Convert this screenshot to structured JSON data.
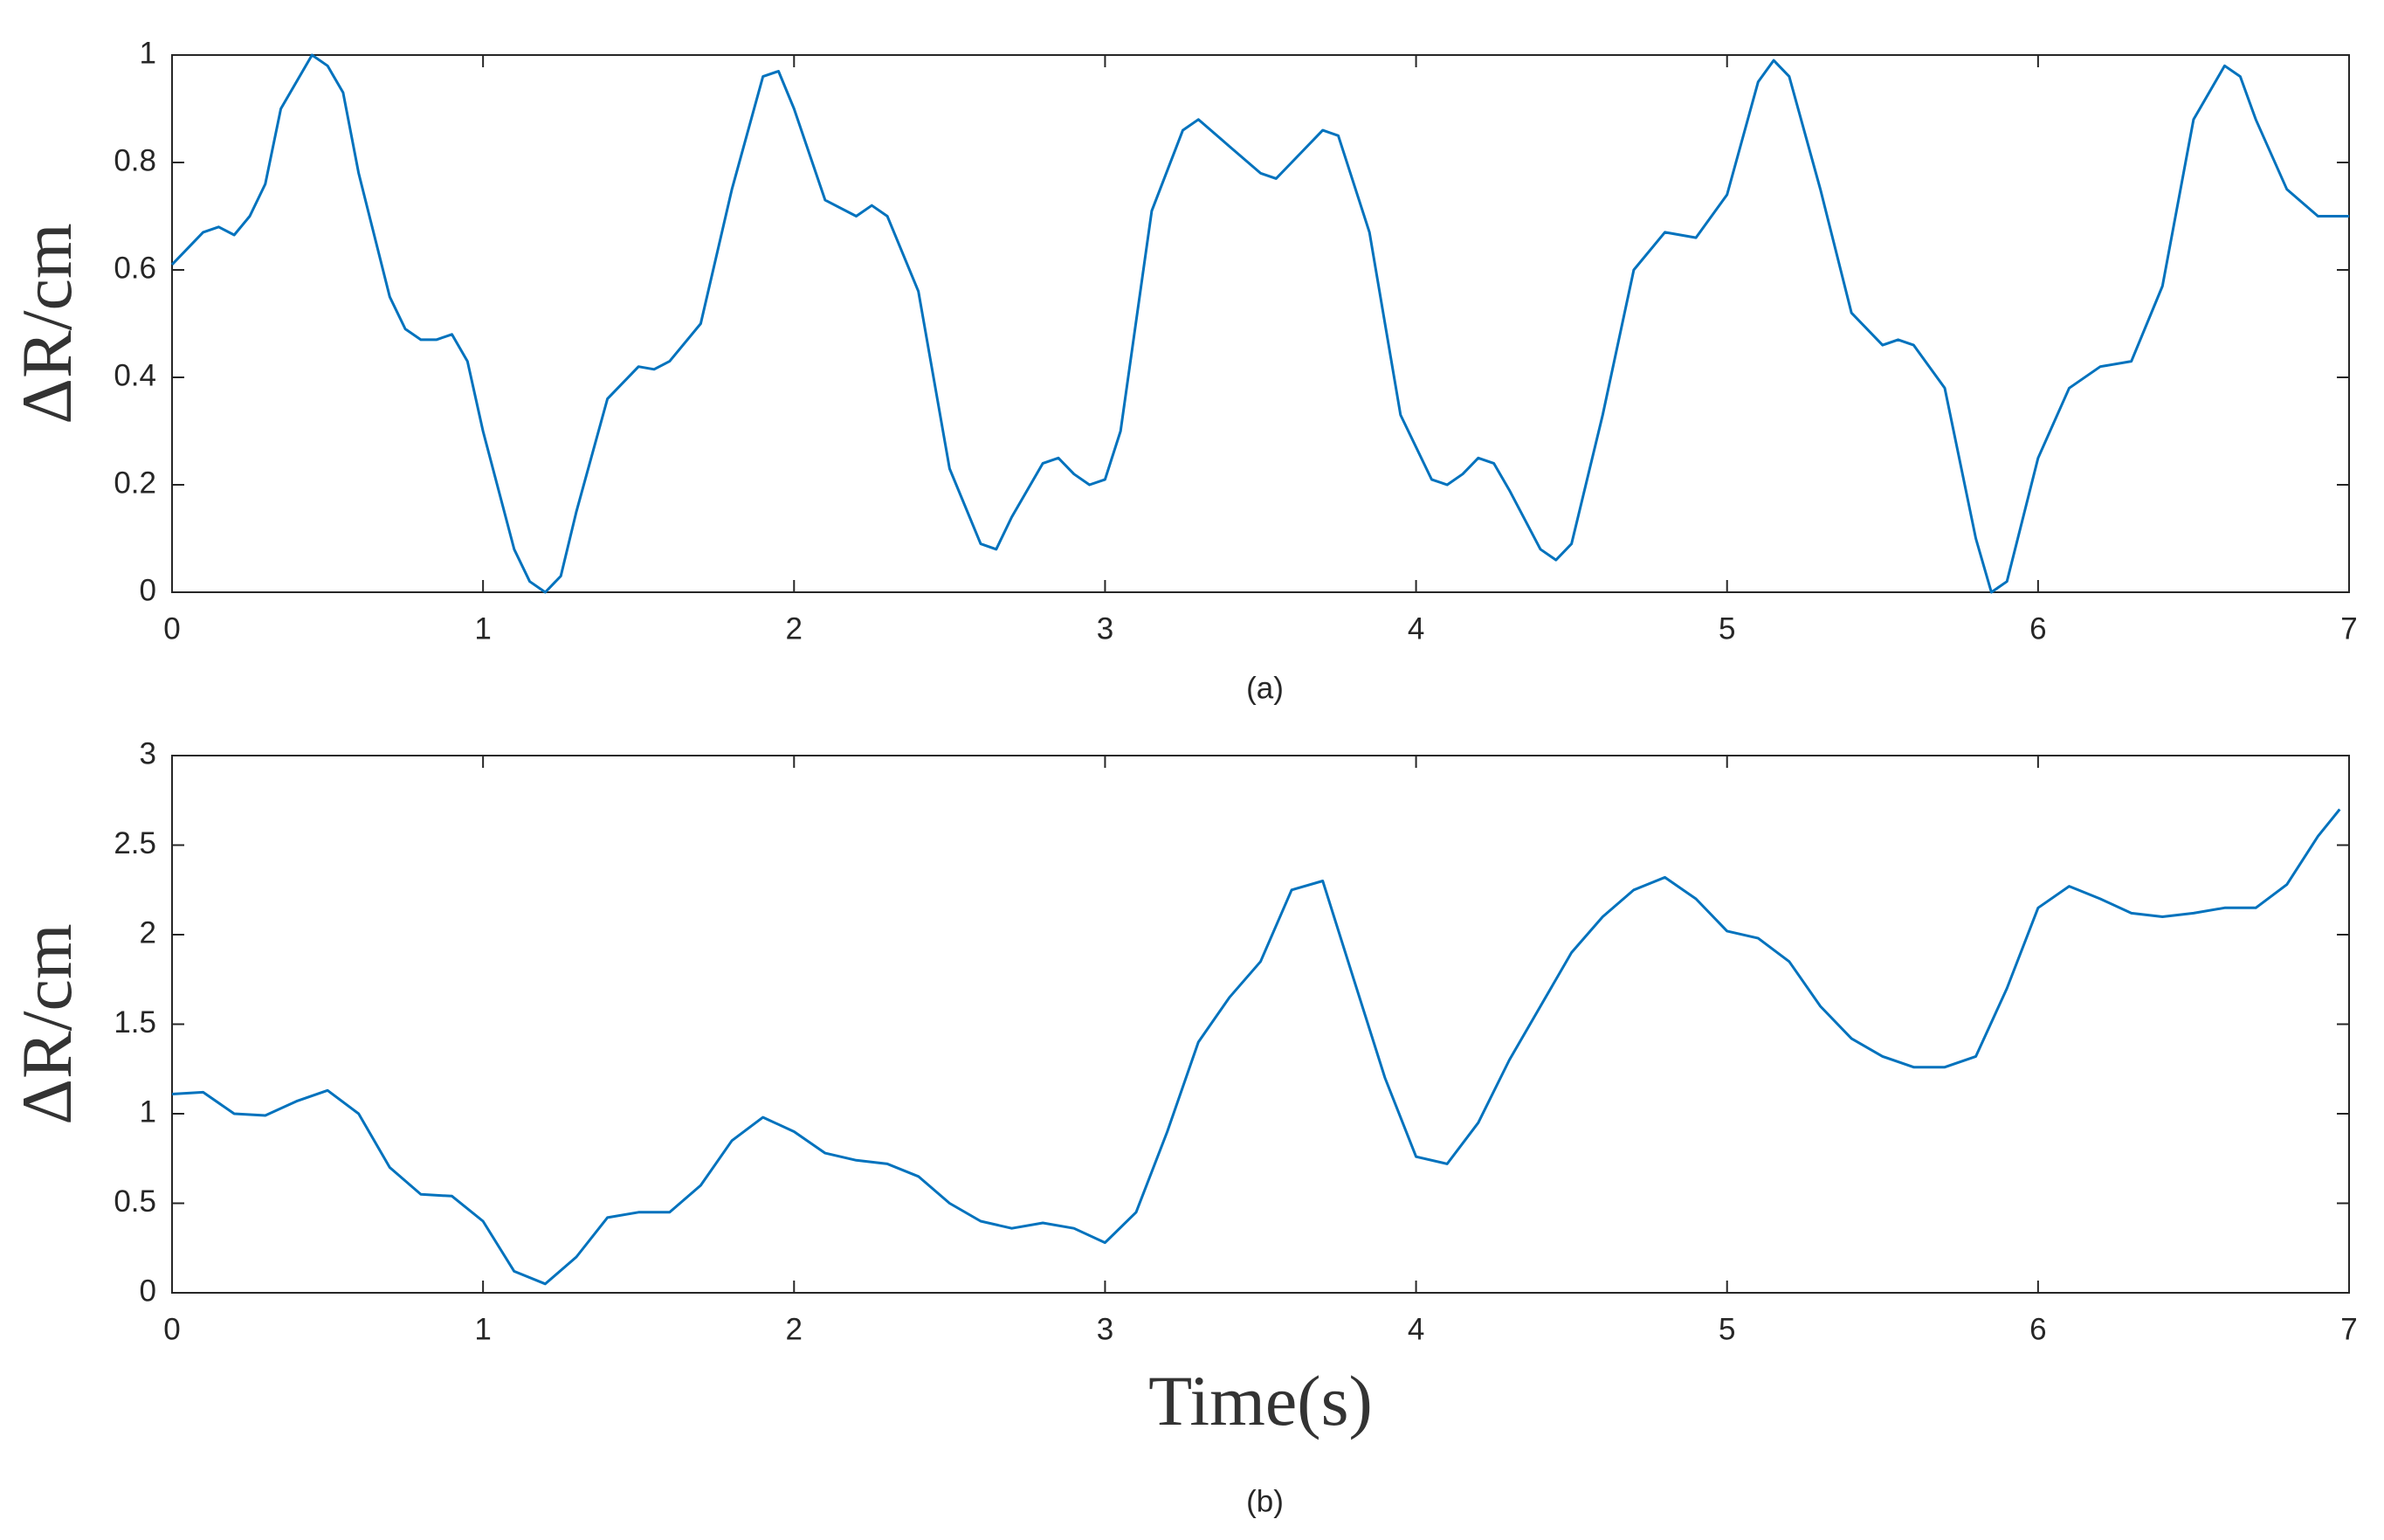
{
  "chart_data": [
    {
      "type": "line",
      "ylabel": "ΔR/cm",
      "caption": "(a)",
      "color": "#0072bd",
      "xlim": [
        0,
        7
      ],
      "xticks": [
        0,
        1,
        2,
        3,
        4,
        5,
        6,
        7
      ],
      "ylim": [
        0,
        1
      ],
      "yticks": [
        0,
        0.2,
        0.4,
        0.6,
        0.8,
        1
      ],
      "x": [
        0,
        0.1,
        0.15,
        0.2,
        0.25,
        0.3,
        0.35,
        0.45,
        0.5,
        0.55,
        0.6,
        0.7,
        0.75,
        0.8,
        0.85,
        0.9,
        0.95,
        1.0,
        1.1,
        1.15,
        1.2,
        1.25,
        1.3,
        1.4,
        1.5,
        1.55,
        1.6,
        1.7,
        1.8,
        1.9,
        1.95,
        2.0,
        2.1,
        2.2,
        2.25,
        2.3,
        2.4,
        2.5,
        2.6,
        2.65,
        2.7,
        2.8,
        2.85,
        2.9,
        2.95,
        3.0,
        3.05,
        3.15,
        3.25,
        3.3,
        3.4,
        3.5,
        3.55,
        3.6,
        3.7,
        3.75,
        3.85,
        3.95,
        4.05,
        4.1,
        4.15,
        4.2,
        4.25,
        4.3,
        4.4,
        4.45,
        4.5,
        4.6,
        4.7,
        4.8,
        4.9,
        5.0,
        5.1,
        5.15,
        5.2,
        5.3,
        5.4,
        5.5,
        5.55,
        5.6,
        5.7,
        5.8,
        5.85,
        5.9,
        6.0,
        6.1,
        6.2,
        6.3,
        6.4,
        6.5,
        6.6,
        6.65,
        6.7,
        6.8,
        6.9,
        7.0
      ],
      "values": [
        0.61,
        0.67,
        0.68,
        0.665,
        0.7,
        0.76,
        0.9,
        1.0,
        0.98,
        0.93,
        0.78,
        0.55,
        0.49,
        0.47,
        0.47,
        0.48,
        0.43,
        0.3,
        0.08,
        0.02,
        0.0,
        0.03,
        0.15,
        0.36,
        0.42,
        0.415,
        0.43,
        0.5,
        0.75,
        0.96,
        0.97,
        0.9,
        0.73,
        0.7,
        0.72,
        0.7,
        0.56,
        0.23,
        0.09,
        0.08,
        0.14,
        0.24,
        0.25,
        0.22,
        0.2,
        0.21,
        0.3,
        0.71,
        0.86,
        0.88,
        0.83,
        0.78,
        0.77,
        0.8,
        0.86,
        0.85,
        0.67,
        0.33,
        0.21,
        0.2,
        0.22,
        0.25,
        0.24,
        0.19,
        0.08,
        0.06,
        0.09,
        0.33,
        0.6,
        0.67,
        0.66,
        0.74,
        0.95,
        0.99,
        0.96,
        0.75,
        0.52,
        0.46,
        0.47,
        0.46,
        0.38,
        0.1,
        0.0,
        0.02,
        0.25,
        0.38,
        0.42,
        0.43,
        0.57,
        0.88,
        0.98,
        0.96,
        0.88,
        0.75,
        0.7,
        0.7
      ]
    },
    {
      "type": "line",
      "ylabel": "ΔR/cm",
      "xlabel": "Time(s)",
      "caption": "(b)",
      "color": "#0072bd",
      "xlim": [
        0,
        7
      ],
      "xticks": [
        0,
        1,
        2,
        3,
        4,
        5,
        6,
        7
      ],
      "ylim": [
        0,
        3
      ],
      "yticks": [
        0,
        0.5,
        1,
        1.5,
        2,
        2.5,
        3
      ],
      "x": [
        0,
        0.1,
        0.2,
        0.3,
        0.4,
        0.5,
        0.6,
        0.7,
        0.8,
        0.9,
        1.0,
        1.1,
        1.2,
        1.3,
        1.4,
        1.5,
        1.6,
        1.7,
        1.8,
        1.9,
        2.0,
        2.1,
        2.2,
        2.3,
        2.4,
        2.5,
        2.6,
        2.7,
        2.8,
        2.9,
        3.0,
        3.1,
        3.2,
        3.3,
        3.4,
        3.5,
        3.6,
        3.7,
        3.8,
        3.9,
        4.0,
        4.1,
        4.2,
        4.3,
        4.4,
        4.5,
        4.6,
        4.7,
        4.8,
        4.9,
        5.0,
        5.1,
        5.2,
        5.3,
        5.4,
        5.5,
        5.6,
        5.7,
        5.8,
        5.9,
        6.0,
        6.1,
        6.2,
        6.3,
        6.4,
        6.5,
        6.6,
        6.7,
        6.8,
        6.9,
        6.97
      ],
      "values": [
        1.11,
        1.12,
        1.0,
        0.99,
        1.07,
        1.13,
        1.0,
        0.7,
        0.55,
        0.54,
        0.4,
        0.12,
        0.05,
        0.2,
        0.42,
        0.45,
        0.45,
        0.6,
        0.85,
        0.98,
        0.9,
        0.78,
        0.74,
        0.72,
        0.65,
        0.5,
        0.4,
        0.36,
        0.39,
        0.36,
        0.28,
        0.45,
        0.9,
        1.4,
        1.65,
        1.85,
        2.25,
        2.3,
        1.75,
        1.2,
        0.76,
        0.72,
        0.95,
        1.3,
        1.6,
        1.9,
        2.1,
        2.25,
        2.32,
        2.2,
        2.02,
        1.98,
        1.85,
        1.6,
        1.42,
        1.32,
        1.26,
        1.26,
        1.32,
        1.7,
        2.15,
        2.27,
        2.2,
        2.12,
        2.1,
        2.12,
        2.15,
        2.15,
        2.28,
        2.55,
        2.7
      ]
    }
  ]
}
